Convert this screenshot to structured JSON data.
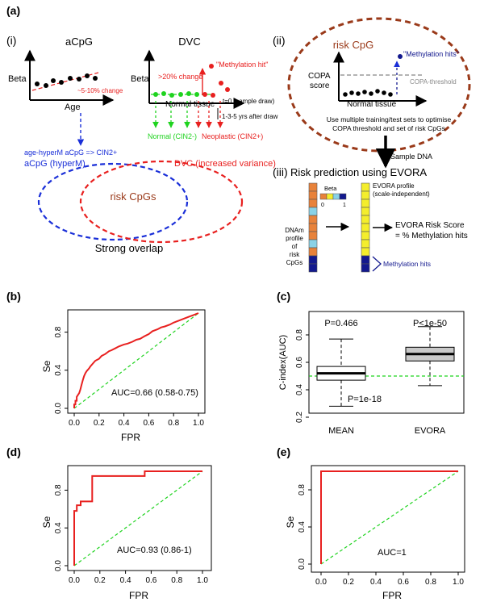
{
  "panel_a": {
    "label": "(a)",
    "sub_i": "(i)",
    "sub_ii": "(ii)",
    "sub_iii": "(iii)",
    "acpg": {
      "title": "aCpG",
      "ylabel": "Beta",
      "xlabel": "Age",
      "change": "~5-10% change",
      "note": "age-hyperM aCpG => CIN2+"
    },
    "dvc": {
      "title": "DVC",
      "ylabel": "Beta",
      "change": ">20% change",
      "hit": "\"Methylation hit\"",
      "xlabel": "Normal tissue",
      "t0": "t=0 (sample draw)",
      "after": "1-3-5 yrs after draw",
      "normal": "Normal (CIN2-)",
      "neoplastic": "Neoplastic (CIN2+)"
    },
    "venn": {
      "left": "aCpG (hyperM)",
      "right": "DVC (increased variance)",
      "center": "risk CpGs",
      "caption": "Strong overlap"
    },
    "copa": {
      "title": "risk CpG",
      "ylabel1": "COPA",
      "ylabel2": "score",
      "hits": "\"Methylation hits\"",
      "threshold": "COPA-threshold",
      "xlabel": "Normal tissue",
      "text1": "Use multiple training/test sets to optimise",
      "text2": "COPA threshold and set of risk CpGs",
      "sample": "Sample DNA"
    },
    "evora": {
      "title": "Risk prediction using EVORA",
      "beta": "Beta",
      "beta_min": "0",
      "beta_max": "1",
      "profile1": "EVORA profile",
      "profile2": "(scale-independent)",
      "dnam": [
        "DNAm",
        "profile",
        "of",
        "risk",
        "CpGs"
      ],
      "score1": "EVORA Risk Score",
      "score2": "= % Methylation hits",
      "hits": "Methylation hits"
    }
  },
  "panel_b": {
    "label": "(b)",
    "chart_data": {
      "type": "line",
      "title": "",
      "xlabel": "FPR",
      "ylabel": "Se",
      "xlim": [
        0,
        1
      ],
      "ylim": [
        0,
        1
      ],
      "xticks": [
        "0.0",
        "0.2",
        "0.4",
        "0.6",
        "0.8",
        "1.0"
      ],
      "yticks": [
        "0.0",
        "0.4",
        "0.8"
      ],
      "annotation": "AUC=0.66 (0.58-0.75)",
      "series": [
        {
          "name": "ROC",
          "x": [
            0,
            0,
            0.01,
            0.01,
            0.02,
            0.02,
            0.04,
            0.05,
            0.06,
            0.07,
            0.08,
            0.09,
            0.1,
            0.12,
            0.13,
            0.15,
            0.17,
            0.2,
            0.22,
            0.25,
            0.28,
            0.3,
            0.33,
            0.36,
            0.4,
            0.43,
            0.47,
            0.5,
            0.53,
            0.57,
            0.6,
            0.63,
            0.67,
            0.7,
            0.73,
            0.77,
            0.8,
            0.84,
            0.88,
            0.92,
            0.96,
            1
          ],
          "y": [
            0,
            0.04,
            0.04,
            0.08,
            0.08,
            0.12,
            0.16,
            0.2,
            0.25,
            0.3,
            0.34,
            0.37,
            0.39,
            0.42,
            0.44,
            0.47,
            0.5,
            0.52,
            0.55,
            0.57,
            0.6,
            0.61,
            0.63,
            0.65,
            0.67,
            0.68,
            0.7,
            0.72,
            0.73,
            0.76,
            0.78,
            0.81,
            0.83,
            0.85,
            0.86,
            0.88,
            0.9,
            0.92,
            0.94,
            0.96,
            0.98,
            1
          ]
        },
        {
          "name": "diagonal",
          "x": [
            0,
            1
          ],
          "y": [
            0,
            1
          ]
        }
      ]
    }
  },
  "panel_c": {
    "label": "(c)",
    "chart_data": {
      "type": "box",
      "ylabel": "C-index(AUC)",
      "categories": [
        "MEAN",
        "EVORA"
      ],
      "ylim": [
        0.2,
        1.0
      ],
      "yticks": [
        "0.2",
        "0.4",
        "0.6",
        "0.8"
      ],
      "boxes": [
        {
          "name": "MEAN",
          "whisker_low": 0.28,
          "q1": 0.47,
          "median": 0.52,
          "q3": 0.57,
          "whisker_high": 0.77,
          "pvalue": "P=0.466"
        },
        {
          "name": "EVORA",
          "whisker_low": 0.43,
          "q1": 0.61,
          "median": 0.66,
          "q3": 0.71,
          "whisker_high": 0.86,
          "pvalue": "P<1e-50"
        }
      ],
      "reference_line": 0.5,
      "annotation": "P=1e-18"
    }
  },
  "panel_d": {
    "label": "(d)",
    "chart_data": {
      "type": "line",
      "xlabel": "FPR",
      "ylabel": "Se",
      "xlim": [
        0,
        1
      ],
      "ylim": [
        0,
        1
      ],
      "xticks": [
        "0.0",
        "0.2",
        "0.4",
        "0.6",
        "0.8",
        "1.0"
      ],
      "yticks": [
        "0.0",
        "0.4",
        "0.8"
      ],
      "annotation": "AUC=0.93 (0.86-1)",
      "series": [
        {
          "name": "ROC",
          "x": [
            0,
            0,
            0.02,
            0.02,
            0.05,
            0.05,
            0.14,
            0.14,
            0.55,
            0.55,
            1
          ],
          "y": [
            0,
            0.58,
            0.58,
            0.64,
            0.64,
            0.68,
            0.68,
            0.95,
            0.95,
            1,
            1
          ]
        },
        {
          "name": "diagonal",
          "x": [
            0,
            1
          ],
          "y": [
            0,
            1
          ]
        }
      ]
    }
  },
  "panel_e": {
    "label": "(e)",
    "chart_data": {
      "type": "line",
      "xlabel": "FPR",
      "ylabel": "Se",
      "xlim": [
        0,
        1
      ],
      "ylim": [
        0,
        1
      ],
      "xticks": [
        "0.0",
        "0.2",
        "0.4",
        "0.6",
        "0.8",
        "1.0"
      ],
      "yticks": [
        "0.0",
        "0.4",
        "0.8"
      ],
      "annotation": "AUC=1",
      "series": [
        {
          "name": "ROC",
          "x": [
            0,
            0,
            1
          ],
          "y": [
            0,
            1,
            1
          ]
        },
        {
          "name": "diagonal",
          "x": [
            0,
            1
          ],
          "y": [
            0,
            1
          ]
        }
      ]
    }
  },
  "colors": {
    "red": "#e8201f",
    "green": "#1fd31f",
    "blue": "#1a2fd8",
    "brown": "#9a3a1a",
    "orange": "#e8823a",
    "yellow": "#f4ee2c",
    "navy": "#13198e",
    "cyan": "#8ad2e6",
    "gray": "#888888"
  }
}
